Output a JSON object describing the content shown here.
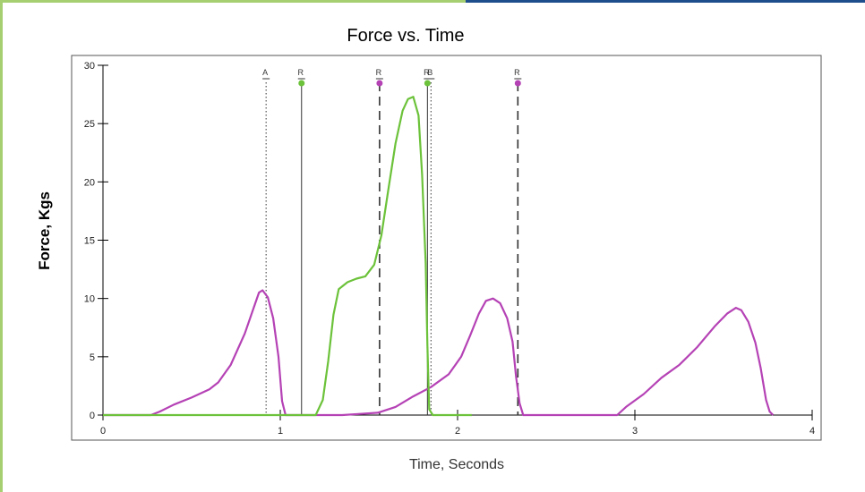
{
  "colors": {
    "accent_green": "#a6cf72",
    "accent_blue": "#1f4e8c",
    "series_magenta": "#b542b5",
    "series_green": "#6cc23a",
    "frame": "#555555"
  },
  "chart_data": {
    "type": "line",
    "title": "Force vs. Time",
    "xlabel": "Time, Seconds",
    "ylabel": "Force, Kgs",
    "xlim": [
      0,
      4
    ],
    "ylim": [
      0,
      30
    ],
    "x_ticks": [
      0,
      1,
      2,
      3,
      4
    ],
    "y_ticks": [
      0,
      5,
      10,
      15,
      20,
      25,
      30
    ],
    "grid": false,
    "series": [
      {
        "color": "#b542b5",
        "points": [
          [
            0,
            0
          ],
          [
            0.27,
            0
          ],
          [
            0.32,
            0.3
          ],
          [
            0.4,
            0.9
          ],
          [
            0.5,
            1.5
          ],
          [
            0.6,
            2.2
          ],
          [
            0.65,
            2.8
          ],
          [
            0.72,
            4.3
          ],
          [
            0.8,
            7
          ],
          [
            0.85,
            9.2
          ],
          [
            0.88,
            10.5
          ],
          [
            0.9,
            10.7
          ],
          [
            0.93,
            10.1
          ],
          [
            0.96,
            8.3
          ],
          [
            0.99,
            5
          ],
          [
            1.01,
            1.2
          ],
          [
            1.03,
            0
          ],
          [
            1.35,
            0
          ],
          [
            1.45,
            0.1
          ],
          [
            1.55,
            0.2
          ],
          [
            1.65,
            0.7
          ],
          [
            1.75,
            1.6
          ],
          [
            1.85,
            2.4
          ],
          [
            1.95,
            3.5
          ],
          [
            2.02,
            5
          ],
          [
            2.07,
            6.8
          ],
          [
            2.12,
            8.7
          ],
          [
            2.16,
            9.8
          ],
          [
            2.2,
            10
          ],
          [
            2.24,
            9.6
          ],
          [
            2.28,
            8.3
          ],
          [
            2.31,
            6.3
          ],
          [
            2.33,
            3.3
          ],
          [
            2.35,
            1
          ],
          [
            2.37,
            0
          ],
          [
            2.9,
            0
          ],
          [
            2.95,
            0.7
          ],
          [
            3.05,
            1.8
          ],
          [
            3.15,
            3.2
          ],
          [
            3.25,
            4.3
          ],
          [
            3.35,
            5.8
          ],
          [
            3.45,
            7.6
          ],
          [
            3.52,
            8.7
          ],
          [
            3.57,
            9.2
          ],
          [
            3.6,
            9
          ],
          [
            3.64,
            8
          ],
          [
            3.68,
            6.2
          ],
          [
            3.71,
            4
          ],
          [
            3.74,
            1.3
          ],
          [
            3.76,
            0.3
          ],
          [
            3.78,
            0
          ]
        ]
      },
      {
        "color": "#6cc23a",
        "points": [
          [
            0,
            0
          ],
          [
            1.2,
            0
          ],
          [
            1.24,
            1.3
          ],
          [
            1.27,
            4.6
          ],
          [
            1.3,
            8.6
          ],
          [
            1.33,
            10.8
          ],
          [
            1.38,
            11.4
          ],
          [
            1.43,
            11.7
          ],
          [
            1.48,
            11.9
          ],
          [
            1.53,
            12.9
          ],
          [
            1.57,
            15.4
          ],
          [
            1.61,
            19.4
          ],
          [
            1.65,
            23.3
          ],
          [
            1.69,
            26.1
          ],
          [
            1.72,
            27.1
          ],
          [
            1.75,
            27.3
          ],
          [
            1.78,
            25.7
          ],
          [
            1.8,
            20.6
          ],
          [
            1.82,
            13
          ],
          [
            1.83,
            6
          ],
          [
            1.84,
            0.5
          ],
          [
            1.86,
            0
          ],
          [
            2.08,
            0
          ]
        ]
      }
    ],
    "markers": [
      {
        "label": "A",
        "x": 0.92,
        "style": "dotted",
        "dot": null
      },
      {
        "label": "R",
        "x": 1.12,
        "style": "solid",
        "dot": "#6cc23a"
      },
      {
        "label": "R",
        "x": 1.56,
        "style": "dashed",
        "dot": "#b542b5"
      },
      {
        "label": "R",
        "x": 1.83,
        "style": "solid",
        "dot": "#6cc23a"
      },
      {
        "label": "B",
        "x": 1.85,
        "style": "dotted",
        "dot": null
      },
      {
        "label": "R",
        "x": 2.34,
        "style": "dashed",
        "dot": "#b542b5"
      }
    ]
  }
}
